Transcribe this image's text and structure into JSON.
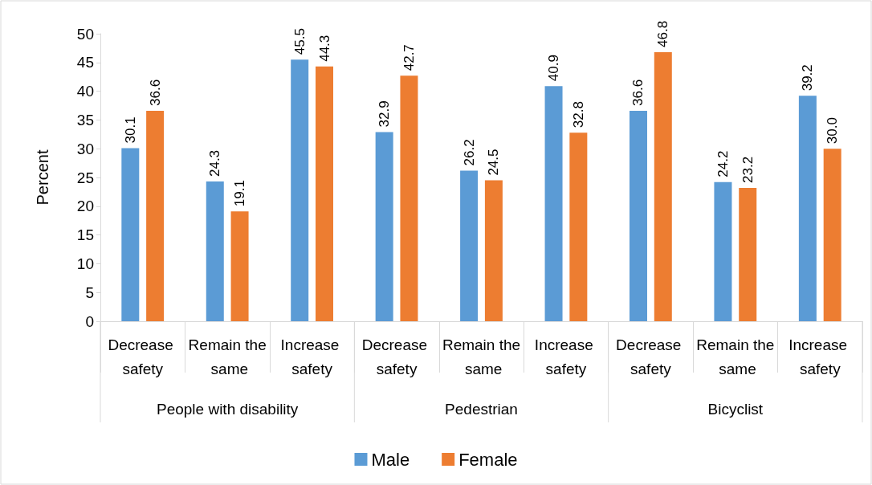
{
  "chart_data": {
    "type": "bar",
    "ylabel": "Percent",
    "categories": [
      "Decrease safety",
      "Remain the same",
      "Increase safety",
      "Decrease safety",
      "Remain the same",
      "Increase safety",
      "Decrease safety",
      "Remain the same",
      "Increase safety"
    ],
    "annotations": [
      "People with disability",
      "Pedestrian",
      "Bicyclist"
    ],
    "series": [
      {
        "name": "Male",
        "color": "#5b9bd5",
        "values": [
          30.1,
          24.3,
          45.5,
          32.9,
          26.2,
          40.9,
          36.6,
          24.2,
          39.2
        ],
        "value_labels": [
          "30.1",
          "24.3",
          "45.5",
          "32.9",
          "26.2",
          "40.9",
          "36.6",
          "24.2",
          "39.2"
        ]
      },
      {
        "name": "Female",
        "color": "#ed7d31",
        "values": [
          36.6,
          19.1,
          44.3,
          42.7,
          24.5,
          32.8,
          46.8,
          23.2,
          30.0
        ],
        "value_labels": [
          "36.6",
          "19.1",
          "44.3",
          "42.7",
          "24.5",
          "32.8",
          "46.8",
          "23.2",
          "30.0"
        ]
      }
    ],
    "ylim": [
      0,
      50
    ],
    "yticks": [
      0,
      5,
      10,
      15,
      20,
      25,
      30,
      35,
      40,
      45,
      50
    ],
    "grid": false,
    "legend": "bottom"
  }
}
